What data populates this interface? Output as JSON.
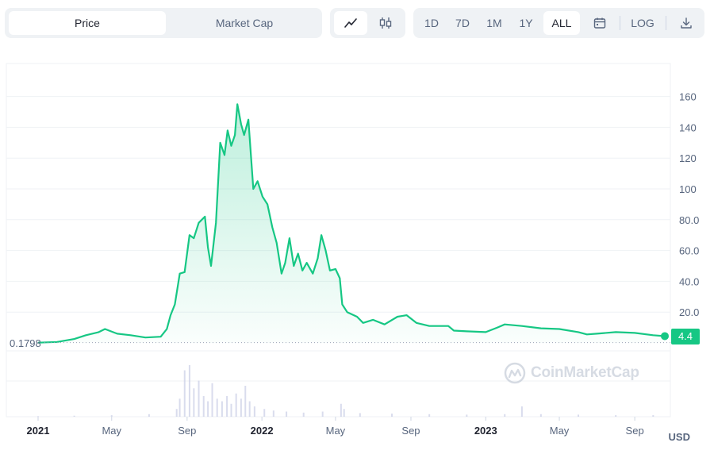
{
  "toolbar": {
    "metric_tabs": [
      {
        "label": "Price",
        "active": true
      },
      {
        "label": "Market Cap",
        "active": false
      }
    ],
    "chart_style": [
      {
        "icon": "line-chart-icon",
        "active": true
      },
      {
        "icon": "candlestick-icon",
        "active": false
      }
    ],
    "ranges": [
      {
        "label": "1D",
        "active": false
      },
      {
        "label": "7D",
        "active": false
      },
      {
        "label": "1M",
        "active": false
      },
      {
        "label": "1Y",
        "active": false
      },
      {
        "label": "ALL",
        "active": true
      }
    ],
    "calendar_icon": "calendar-icon",
    "log_label": "LOG",
    "download_icon": "download-icon"
  },
  "currency_label": "USD",
  "start_price_label": "0.1798",
  "current_price_label": "4.4",
  "watermark": "CoinMarketCap",
  "colors": {
    "line": "#16c784",
    "fill_top": "#16c784",
    "grid": "#eff2f5",
    "volume": "#c9cde6"
  },
  "chart_data": {
    "type": "area",
    "title": "",
    "xlabel": "",
    "ylabel": "",
    "ylim": [
      0,
      170
    ],
    "yticks": [
      0,
      20.0,
      40.0,
      60.0,
      80.0,
      100,
      120,
      140,
      160
    ],
    "ytick_labels": [
      "",
      "20.0",
      "40.0",
      "60.0",
      "80.0",
      "100",
      "120",
      "140",
      "160"
    ],
    "xlim": [
      "2021-01-01",
      "2023-10-20"
    ],
    "xticks": [
      {
        "date": "2021-01-01",
        "label": "2021",
        "year": true
      },
      {
        "date": "2021-05-01",
        "label": "May",
        "year": false
      },
      {
        "date": "2021-09-01",
        "label": "Sep",
        "year": false
      },
      {
        "date": "2022-01-01",
        "label": "2022",
        "year": true
      },
      {
        "date": "2022-05-01",
        "label": "May",
        "year": false
      },
      {
        "date": "2022-09-01",
        "label": "Sep",
        "year": false
      },
      {
        "date": "2023-01-01",
        "label": "2023",
        "year": true
      },
      {
        "date": "2023-05-01",
        "label": "May",
        "year": false
      },
      {
        "date": "2023-09-01",
        "label": "Sep",
        "year": false
      }
    ],
    "grid": true,
    "legend": "none",
    "series": [
      {
        "x": [
          "2021-01-01",
          "2021-02-01",
          "2021-03-01",
          "2021-03-20",
          "2021-04-10",
          "2021-04-20",
          "2021-05-10",
          "2021-06-01",
          "2021-06-25",
          "2021-07-20",
          "2021-07-30",
          "2021-08-05",
          "2021-08-12",
          "2021-08-20",
          "2021-08-28",
          "2021-09-05",
          "2021-09-12",
          "2021-09-20",
          "2021-09-30",
          "2021-10-05",
          "2021-10-10",
          "2021-10-18",
          "2021-10-25",
          "2021-11-01",
          "2021-11-06",
          "2021-11-12",
          "2021-11-18",
          "2021-11-22",
          "2021-11-28",
          "2021-12-03",
          "2021-12-10",
          "2021-12-18",
          "2021-12-25",
          "2022-01-02",
          "2022-01-10",
          "2022-01-18",
          "2022-01-25",
          "2022-02-02",
          "2022-02-08",
          "2022-02-15",
          "2022-02-22",
          "2022-03-01",
          "2022-03-08",
          "2022-03-15",
          "2022-03-25",
          "2022-04-02",
          "2022-04-08",
          "2022-04-15",
          "2022-04-22",
          "2022-05-01",
          "2022-05-08",
          "2022-05-12",
          "2022-05-20",
          "2022-06-05",
          "2022-06-15",
          "2022-07-01",
          "2022-07-20",
          "2022-08-10",
          "2022-08-25",
          "2022-09-10",
          "2022-10-01",
          "2022-11-01",
          "2022-11-10",
          "2022-12-01",
          "2023-01-01",
          "2023-01-20",
          "2023-02-01",
          "2023-03-01",
          "2023-04-01",
          "2023-05-01",
          "2023-06-01",
          "2023-06-15",
          "2023-07-01",
          "2023-08-01",
          "2023-09-01",
          "2023-10-01",
          "2023-10-20"
        ],
        "values": [
          0.18,
          0.6,
          2.5,
          5.0,
          7.0,
          9.0,
          6.0,
          5.0,
          3.5,
          4.0,
          9.0,
          18.0,
          25.0,
          45.0,
          46.0,
          70.0,
          68.0,
          78.0,
          82.0,
          62.0,
          50.0,
          78.0,
          130.0,
          122.0,
          138.0,
          128.0,
          135.0,
          155.0,
          142.0,
          135.0,
          145.0,
          100.0,
          105.0,
          95.0,
          90.0,
          75.0,
          65.0,
          45.0,
          52.0,
          68.0,
          50.0,
          58.0,
          47.0,
          52.0,
          45.0,
          55.0,
          70.0,
          60.0,
          47.0,
          48.0,
          42.0,
          25.0,
          20.0,
          17.0,
          13.0,
          15.0,
          12.0,
          17.0,
          18.0,
          13.0,
          11.0,
          11.0,
          8.0,
          7.5,
          7.0,
          10.0,
          12.0,
          11.0,
          9.5,
          9.0,
          7.0,
          5.5,
          6.0,
          7.0,
          6.5,
          5.0,
          4.4
        ]
      }
    ],
    "volume_series": {
      "note": "relative trading volume bars (0-1 of volume band)",
      "x": [
        "2021-01-01",
        "2021-03-01",
        "2021-05-01",
        "2021-07-01",
        "2021-08-15",
        "2021-08-20",
        "2021-08-28",
        "2021-09-05",
        "2021-09-12",
        "2021-09-20",
        "2021-09-28",
        "2021-10-05",
        "2021-10-12",
        "2021-10-20",
        "2021-10-28",
        "2021-11-05",
        "2021-11-12",
        "2021-11-20",
        "2021-11-28",
        "2021-12-05",
        "2021-12-12",
        "2021-12-20",
        "2022-01-05",
        "2022-01-20",
        "2022-02-10",
        "2022-03-10",
        "2022-04-10",
        "2022-05-10",
        "2022-05-15",
        "2022-06-10",
        "2022-08-01",
        "2022-10-01",
        "2022-12-01",
        "2023-02-01",
        "2023-03-01",
        "2023-04-01",
        "2023-06-01",
        "2023-08-01",
        "2023-10-01"
      ],
      "values": [
        0.01,
        0.02,
        0.03,
        0.05,
        0.15,
        0.35,
        0.9,
        1.0,
        0.55,
        0.7,
        0.4,
        0.3,
        0.65,
        0.35,
        0.3,
        0.4,
        0.25,
        0.45,
        0.35,
        0.6,
        0.3,
        0.2,
        0.15,
        0.12,
        0.1,
        0.08,
        0.1,
        0.25,
        0.15,
        0.07,
        0.06,
        0.05,
        0.04,
        0.05,
        0.2,
        0.05,
        0.04,
        0.03,
        0.03
      ]
    }
  }
}
